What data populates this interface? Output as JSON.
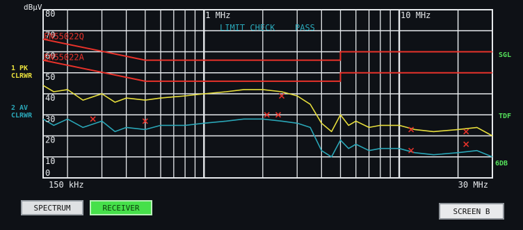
{
  "header": {
    "unit_label": "dBµV"
  },
  "side_labels": {
    "trace1": [
      "1 PK",
      "CLRWR"
    ],
    "trace2": [
      "2 AV",
      "CLRWR"
    ],
    "right": [
      "SGL",
      "TDF",
      "6DB"
    ]
  },
  "limit_check": {
    "label": "LIMIT CHECK",
    "result": "PASS"
  },
  "limit_lines": {
    "quasi_peak": "EN55022Q",
    "average": "EN55022A"
  },
  "buttons": {
    "spectrum": "SPECTRUM",
    "receiver": "RECEIVER",
    "screen": "SCREEN B"
  },
  "colors": {
    "grid": "#e6e9ec",
    "trace1": "#e8df3c",
    "trace2": "#2aa7b8",
    "limit": "#e8322a",
    "label_yellow": "#e8df3c",
    "label_cyan": "#2aa7b8",
    "label_green": "#54e05a",
    "text_white": "#e6e9ec"
  },
  "chart_data": {
    "type": "line",
    "x_scale": "log",
    "x_range_mhz": [
      0.15,
      30
    ],
    "x_tick_labels": [
      {
        "mhz": 0.15,
        "text": "150 kHz"
      },
      {
        "mhz": 1,
        "text": "1 MHz"
      },
      {
        "mhz": 10,
        "text": "10 MHz"
      },
      {
        "mhz": 30,
        "text": "30 MHz"
      }
    ],
    "y_range": [
      0,
      80
    ],
    "y_tick_labels": [
      "80",
      "70",
      "60",
      "50",
      "40",
      "30",
      "20",
      "10",
      "0"
    ],
    "grid": true,
    "series": [
      {
        "name": "1 PK CLRWR",
        "x": [
          0.15,
          0.17,
          0.2,
          0.24,
          0.3,
          0.35,
          0.4,
          0.5,
          0.6,
          0.8,
          1.0,
          1.3,
          1.6,
          2.0,
          2.5,
          3.0,
          3.5,
          4.0,
          4.5,
          5.0,
          5.5,
          6.0,
          7.0,
          8.0,
          10.0,
          12.0,
          15.0,
          20.0,
          25.0,
          30.0
        ],
        "y": [
          44,
          41,
          42,
          37,
          40,
          36,
          38,
          37,
          38,
          39,
          40,
          41,
          42,
          42,
          41,
          39,
          35,
          26,
          22,
          30,
          25,
          27,
          24,
          25,
          25,
          23,
          22,
          23,
          24,
          20
        ]
      },
      {
        "name": "2 AV CLRWR",
        "x": [
          0.15,
          0.17,
          0.2,
          0.24,
          0.3,
          0.35,
          0.4,
          0.5,
          0.6,
          0.8,
          1.0,
          1.3,
          1.6,
          2.0,
          2.5,
          3.0,
          3.5,
          4.0,
          4.5,
          5.0,
          5.5,
          6.0,
          7.0,
          8.0,
          10.0,
          12.0,
          15.0,
          20.0,
          25.0,
          30.0
        ],
        "y": [
          28,
          25,
          28,
          24,
          27,
          22,
          24,
          23,
          25,
          25,
          26,
          27,
          28,
          28,
          27,
          26,
          24,
          13,
          10,
          18,
          14,
          16,
          13,
          14,
          14,
          12,
          11,
          12,
          13,
          10
        ]
      },
      {
        "name": "EN55022Q",
        "x": [
          0.15,
          0.5,
          5.0,
          5.0,
          30.0
        ],
        "y": [
          66,
          56,
          56,
          60,
          60
        ]
      },
      {
        "name": "EN55022A",
        "x": [
          0.15,
          0.5,
          5.0,
          5.0,
          30.0
        ],
        "y": [
          56,
          46,
          46,
          50,
          50
        ]
      }
    ],
    "markers": [
      {
        "x": 0.27,
        "y": 28
      },
      {
        "x": 0.5,
        "y": 27
      },
      {
        "x": 2.1,
        "y": 30
      },
      {
        "x": 2.4,
        "y": 30
      },
      {
        "x": 2.5,
        "y": 39
      },
      {
        "x": 11.5,
        "y": 23
      },
      {
        "x": 11.5,
        "y": 13
      },
      {
        "x": 22,
        "y": 22
      },
      {
        "x": 22,
        "y": 16
      }
    ]
  }
}
